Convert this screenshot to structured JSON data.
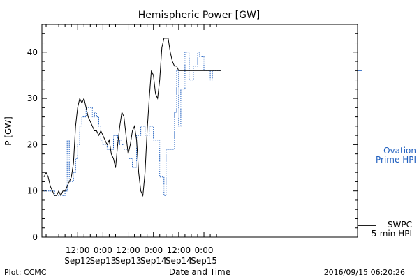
{
  "chart_data": {
    "type": "line",
    "title": "Hemispheric Power [GW]",
    "xlabel": "Date and Time",
    "ylabel": "P [GW]",
    "ylim": [
      0,
      46
    ],
    "yticks": [
      0,
      10,
      20,
      30,
      40
    ],
    "x_unit": "hours since 2016-09-12 00:00 UTC",
    "xlim": [
      -5,
      145
    ],
    "xticks": [
      {
        "x": 12,
        "time": "12:00",
        "date": "Sep12"
      },
      {
        "x": 24,
        "time": "0:00",
        "date": "Sep13"
      },
      {
        "x": 36,
        "time": "12:00",
        "date": "Sep13"
      },
      {
        "x": 48,
        "time": "0:00",
        "date": "Sep14"
      },
      {
        "x": 60,
        "time": "12:00",
        "date": "Sep14"
      },
      {
        "x": 72,
        "time": "0:00",
        "date": "Sep15"
      }
    ],
    "series": [
      {
        "name": "Ovation Prime HPI",
        "legend": [
          "— Ovation",
          "Prime HPI"
        ],
        "color": "#1f5fbf",
        "style": "dotted",
        "x": [
          -4,
          1,
          1,
          6,
          6,
          7,
          7,
          8,
          8,
          10,
          10,
          11,
          11,
          12,
          12,
          13,
          13,
          14,
          14,
          16,
          16,
          19,
          19,
          20,
          20,
          21,
          21,
          22,
          22,
          23,
          23,
          24,
          24,
          26,
          26,
          29,
          29,
          31,
          31,
          32,
          32,
          33,
          33,
          34,
          34,
          36,
          36,
          38,
          38,
          40,
          40,
          42,
          42,
          44,
          44,
          46,
          46,
          48,
          48,
          51,
          51,
          53,
          53,
          54,
          54,
          58,
          58,
          59,
          59,
          60,
          60,
          61,
          61,
          63,
          63,
          65,
          65,
          67,
          67,
          69,
          69,
          70,
          70,
          72,
          72,
          75,
          75,
          76,
          76,
          77,
          77,
          80,
          80
        ],
        "y": [
          10,
          10,
          9,
          9,
          10,
          10,
          21,
          21,
          12,
          12,
          14,
          14,
          17,
          17,
          20,
          20,
          24,
          24,
          26,
          26,
          28,
          28,
          26,
          26,
          27,
          27,
          26,
          26,
          24,
          24,
          21,
          21,
          20,
          20,
          19,
          19,
          22,
          22,
          20,
          20,
          21,
          21,
          20,
          20,
          19,
          19,
          17,
          17,
          15,
          15,
          22,
          22,
          24,
          24,
          22,
          22,
          24,
          24,
          21,
          21,
          13,
          13,
          9,
          9,
          19,
          19,
          27,
          27,
          36,
          36,
          24,
          24,
          32,
          32,
          40,
          40,
          34,
          34,
          37,
          37,
          40,
          40,
          39,
          39,
          36,
          36,
          34,
          34,
          36,
          36,
          36,
          36,
          36
        ]
      },
      {
        "name": "SWPC 5-min HPI",
        "legend": [
          "SWPC",
          "5-min HPI"
        ],
        "color": "#000000",
        "style": "solid",
        "x": [
          -4,
          -3,
          -2,
          -1,
          0,
          1,
          2,
          3,
          4,
          5,
          6,
          7,
          8,
          9,
          10,
          11,
          12,
          13,
          14,
          15,
          16,
          17,
          18,
          19,
          20,
          21,
          22,
          23,
          24,
          25,
          26,
          27,
          28,
          29,
          30,
          31,
          32,
          33,
          34,
          35,
          36,
          37,
          38,
          39,
          40,
          41,
          42,
          43,
          44,
          45,
          46,
          47,
          48,
          49,
          50,
          51,
          52,
          53,
          54,
          55,
          56,
          57,
          58,
          59,
          60,
          61,
          62,
          63,
          64,
          65,
          66,
          67,
          68,
          69,
          70,
          71,
          72,
          73,
          74,
          75,
          76,
          77,
          78,
          79,
          80
        ],
        "y": [
          13,
          14,
          13,
          11,
          10,
          9,
          9,
          10,
          9,
          10,
          10,
          11,
          12,
          13,
          16,
          24,
          28,
          30,
          29,
          30,
          28,
          26,
          25,
          24,
          23,
          23,
          22,
          23,
          22,
          21,
          20,
          21,
          18,
          17,
          15,
          20,
          24,
          27,
          26,
          22,
          18,
          20,
          23,
          24,
          21,
          14,
          10,
          9,
          14,
          23,
          30,
          36,
          35,
          31,
          30,
          34,
          41,
          43,
          43,
          43,
          40,
          38,
          37,
          37,
          36,
          36,
          36,
          36,
          36,
          36,
          36,
          36,
          36,
          36,
          36,
          36,
          36,
          36,
          36,
          36,
          36,
          36,
          36,
          36,
          36
        ]
      }
    ],
    "footer_left": "Plot: CCMC",
    "footer_right": "2016/09/15 06:20:26"
  }
}
